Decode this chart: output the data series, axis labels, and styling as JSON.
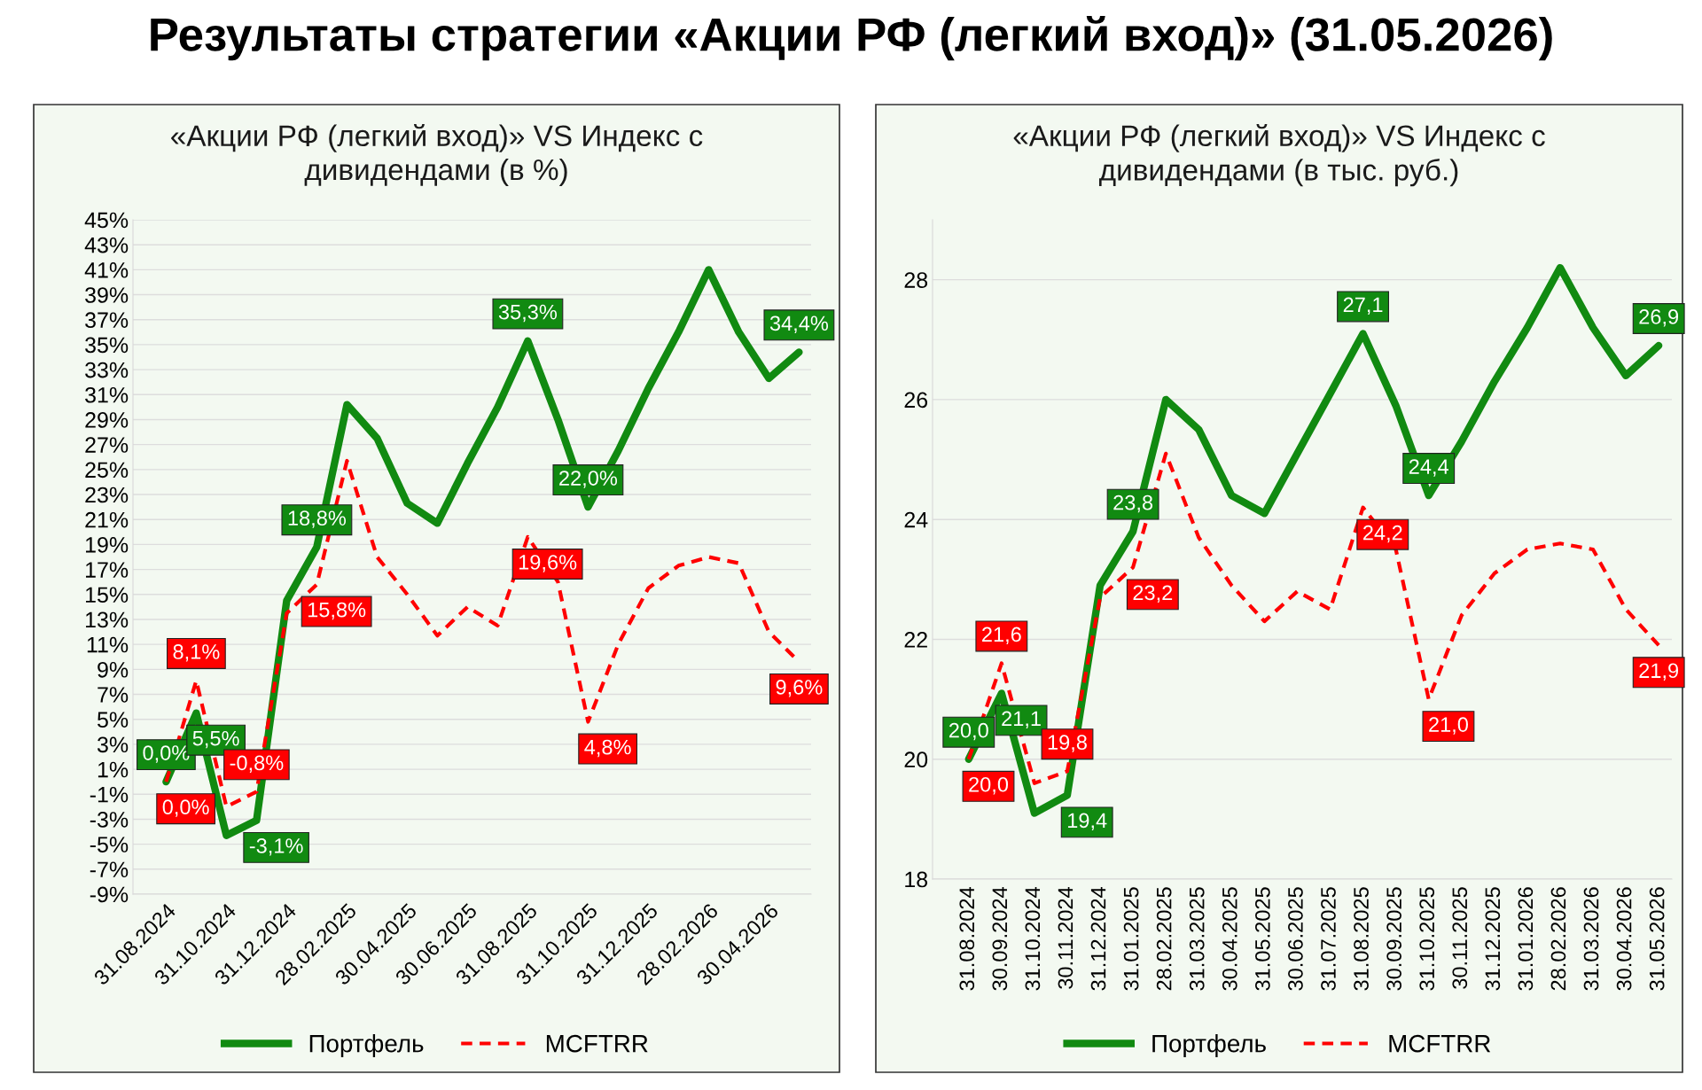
{
  "chart_data": [
    {
      "type": "line",
      "title": "«Акции РФ (легкий вход)» VS Индекс с дивидендами (в %)",
      "annotations": [
        "Результаты стратегии «Акции РФ (легкий вход)» (31.05.2026)"
      ],
      "categories": [
        "31.08.2024",
        null,
        "31.10.2024",
        null,
        "31.12.2024",
        null,
        "28.02.2025",
        null,
        "30.04.2025",
        null,
        "30.06.2025",
        null,
        "31.08.2025",
        null,
        "31.10.2025",
        null,
        "31.12.2025",
        null,
        "28.02.2026",
        null,
        "30.04.2026",
        null
      ],
      "ylim": [
        -9,
        45
      ],
      "yticks": [
        {
          "value": -9,
          "label": "-9%"
        },
        {
          "value": -7,
          "label": "-7%"
        },
        {
          "value": -5,
          "label": "-5%"
        },
        {
          "value": -3,
          "label": "-3%"
        },
        {
          "value": -1,
          "label": "-1%"
        },
        {
          "value": 1,
          "label": "1%"
        },
        {
          "value": 3,
          "label": "3%"
        },
        {
          "value": 5,
          "label": "5%"
        },
        {
          "value": 7,
          "label": "7%"
        },
        {
          "value": 9,
          "label": "9%"
        },
        {
          "value": 11,
          "label": "11%"
        },
        {
          "value": 13,
          "label": "13%"
        },
        {
          "value": 15,
          "label": "15%"
        },
        {
          "value": 17,
          "label": "17%"
        },
        {
          "value": 19,
          "label": "19%"
        },
        {
          "value": 21,
          "label": "21%"
        },
        {
          "value": 23,
          "label": "23%"
        },
        {
          "value": 25,
          "label": "25%"
        },
        {
          "value": 27,
          "label": "27%"
        },
        {
          "value": 29,
          "label": "29%"
        },
        {
          "value": 31,
          "label": "31%"
        },
        {
          "value": 33,
          "label": "33%"
        },
        {
          "value": 35,
          "label": "35%"
        },
        {
          "value": 37,
          "label": "37%"
        },
        {
          "value": 39,
          "label": "39%"
        },
        {
          "value": 41,
          "label": "41%"
        },
        {
          "value": 43,
          "label": "43%"
        },
        {
          "value": 45,
          "label": "45%"
        }
      ],
      "grid": "y",
      "legend": "bottom",
      "series": [
        {
          "name": "Портфель",
          "color": "#118a11",
          "line_style": "solid",
          "values": [
            0.0,
            5.5,
            -4.3,
            -3.1,
            14.5,
            18.8,
            30.2,
            27.5,
            22.3,
            20.7,
            25.5,
            30.0,
            35.3,
            29.0,
            22.0,
            26.5,
            31.5,
            36.0,
            41.0,
            36.0,
            32.3,
            34.4
          ],
          "value_labels": [
            "0,0%",
            "5,5%",
            null,
            "-3,1%",
            null,
            "18,8%",
            null,
            null,
            null,
            null,
            null,
            null,
            "35,3%",
            null,
            "22,0%",
            null,
            null,
            null,
            null,
            null,
            null,
            "34,4%"
          ]
        },
        {
          "name": "MCFTRR",
          "color": "#ff0000",
          "line_style": "dashed",
          "values": [
            0.0,
            8.1,
            -2.0,
            -0.8,
            13.5,
            15.8,
            25.7,
            18.0,
            15.0,
            11.7,
            14.0,
            12.5,
            19.6,
            16.0,
            4.8,
            11.0,
            15.5,
            17.3,
            18.0,
            17.5,
            12.0,
            9.6
          ],
          "value_labels": [
            "0,0%",
            "8,1%",
            null,
            "-0,8%",
            null,
            "15,8%",
            null,
            null,
            null,
            null,
            null,
            null,
            "19,6%",
            null,
            "4,8%",
            null,
            null,
            null,
            null,
            null,
            null,
            "9,6%"
          ]
        }
      ]
    },
    {
      "type": "line",
      "title": "«Акции РФ (легкий вход)» VS Индекс с дивидендами (в тыс. руб.)",
      "categories": [
        "31.08.2024",
        "30.09.2024",
        "31.10.2024",
        "30.11.2024",
        "31.12.2024",
        "31.01.2025",
        "28.02.2025",
        "31.03.2025",
        "30.04.2025",
        "31.05.2025",
        "30.06.2025",
        "31.07.2025",
        "31.08.2025",
        "30.09.2025",
        "31.10.2025",
        "30.11.2025",
        "31.12.2025",
        "31.01.2026",
        "28.02.2026",
        "31.03.2026",
        "30.04.2026",
        "31.05.2026"
      ],
      "ylim": [
        18,
        29
      ],
      "yticks": [
        18,
        20,
        22,
        24,
        26,
        28
      ],
      "grid": "y",
      "legend": "bottom",
      "series": [
        {
          "name": "Портфель",
          "color": "#118a11",
          "line_style": "solid",
          "values": [
            20.0,
            21.1,
            19.1,
            19.4,
            22.9,
            23.8,
            26.0,
            25.5,
            24.4,
            24.1,
            25.1,
            26.1,
            27.1,
            25.9,
            24.4,
            25.3,
            26.3,
            27.2,
            28.2,
            27.2,
            26.4,
            26.9
          ],
          "value_labels": [
            "20,0",
            "21,1",
            null,
            "19,4",
            null,
            "23,8",
            null,
            null,
            null,
            null,
            null,
            null,
            "27,1",
            null,
            "24,4",
            null,
            null,
            null,
            null,
            null,
            null,
            "26,9"
          ]
        },
        {
          "name": "MCFTRR",
          "color": "#ff0000",
          "line_style": "dashed",
          "values": [
            20.0,
            21.6,
            19.6,
            19.8,
            22.7,
            23.2,
            25.1,
            23.7,
            22.9,
            22.3,
            22.8,
            22.5,
            24.2,
            23.5,
            21.0,
            22.4,
            23.1,
            23.5,
            23.6,
            23.5,
            22.5,
            21.9
          ],
          "value_labels": [
            "20,0",
            "21,6",
            null,
            "19,8",
            null,
            "23,2",
            null,
            null,
            null,
            null,
            null,
            null,
            "24,2",
            null,
            "21,0",
            null,
            null,
            null,
            null,
            null,
            null,
            "21,9"
          ]
        }
      ]
    }
  ]
}
